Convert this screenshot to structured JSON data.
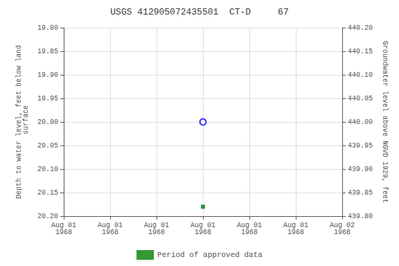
{
  "chart_data": {
    "type": "scatter",
    "title": "USGS 412905072435501  CT-D     67",
    "ylabel": "Depth to water level, feet below land\n surface",
    "y2label": "Groundwater level above NGVD 1929, feet",
    "categories": [
      "Aug 01\n1968",
      "Aug 01\n1968",
      "Aug 01\n1968",
      "Aug 01\n1968",
      "Aug 01\n1968",
      "Aug 01\n1968",
      "Aug 02\n1968"
    ],
    "series": [
      {
        "color": "blue",
        "marker": "circle_open",
        "values": [
          null,
          null,
          null,
          20.0,
          null,
          null,
          null
        ]
      },
      {
        "name": "Period of approved data",
        "color": "green",
        "marker": "square",
        "values": [
          null,
          null,
          null,
          20.18,
          null,
          null,
          null
        ]
      }
    ],
    "ylim": [
      20.2,
      19.8
    ],
    "yticks": [
      {
        "value": 19.8,
        "label": "19.80"
      },
      19.85,
      {
        "value": 19.9,
        "label": "19.90"
      },
      19.95,
      {
        "value": 20.0,
        "label": "20.00"
      },
      20.05,
      {
        "value": 20.1,
        "label": "20.10"
      },
      20.15,
      {
        "value": 20.2,
        "label": "20.20"
      }
    ],
    "y2lim": [
      439.8,
      440.2
    ],
    "y2ticks": [
      {
        "value": 440.2,
        "label": "440.20"
      },
      440.15,
      {
        "value": 440.1,
        "label": "440.10"
      },
      440.05,
      {
        "value": 440.0,
        "label": "440.00"
      },
      439.95,
      {
        "value": 439.9,
        "label": "439.90"
      },
      439.85,
      {
        "value": 439.8,
        "label": "439.80"
      }
    ],
    "grid": true,
    "legend": "bottom"
  }
}
